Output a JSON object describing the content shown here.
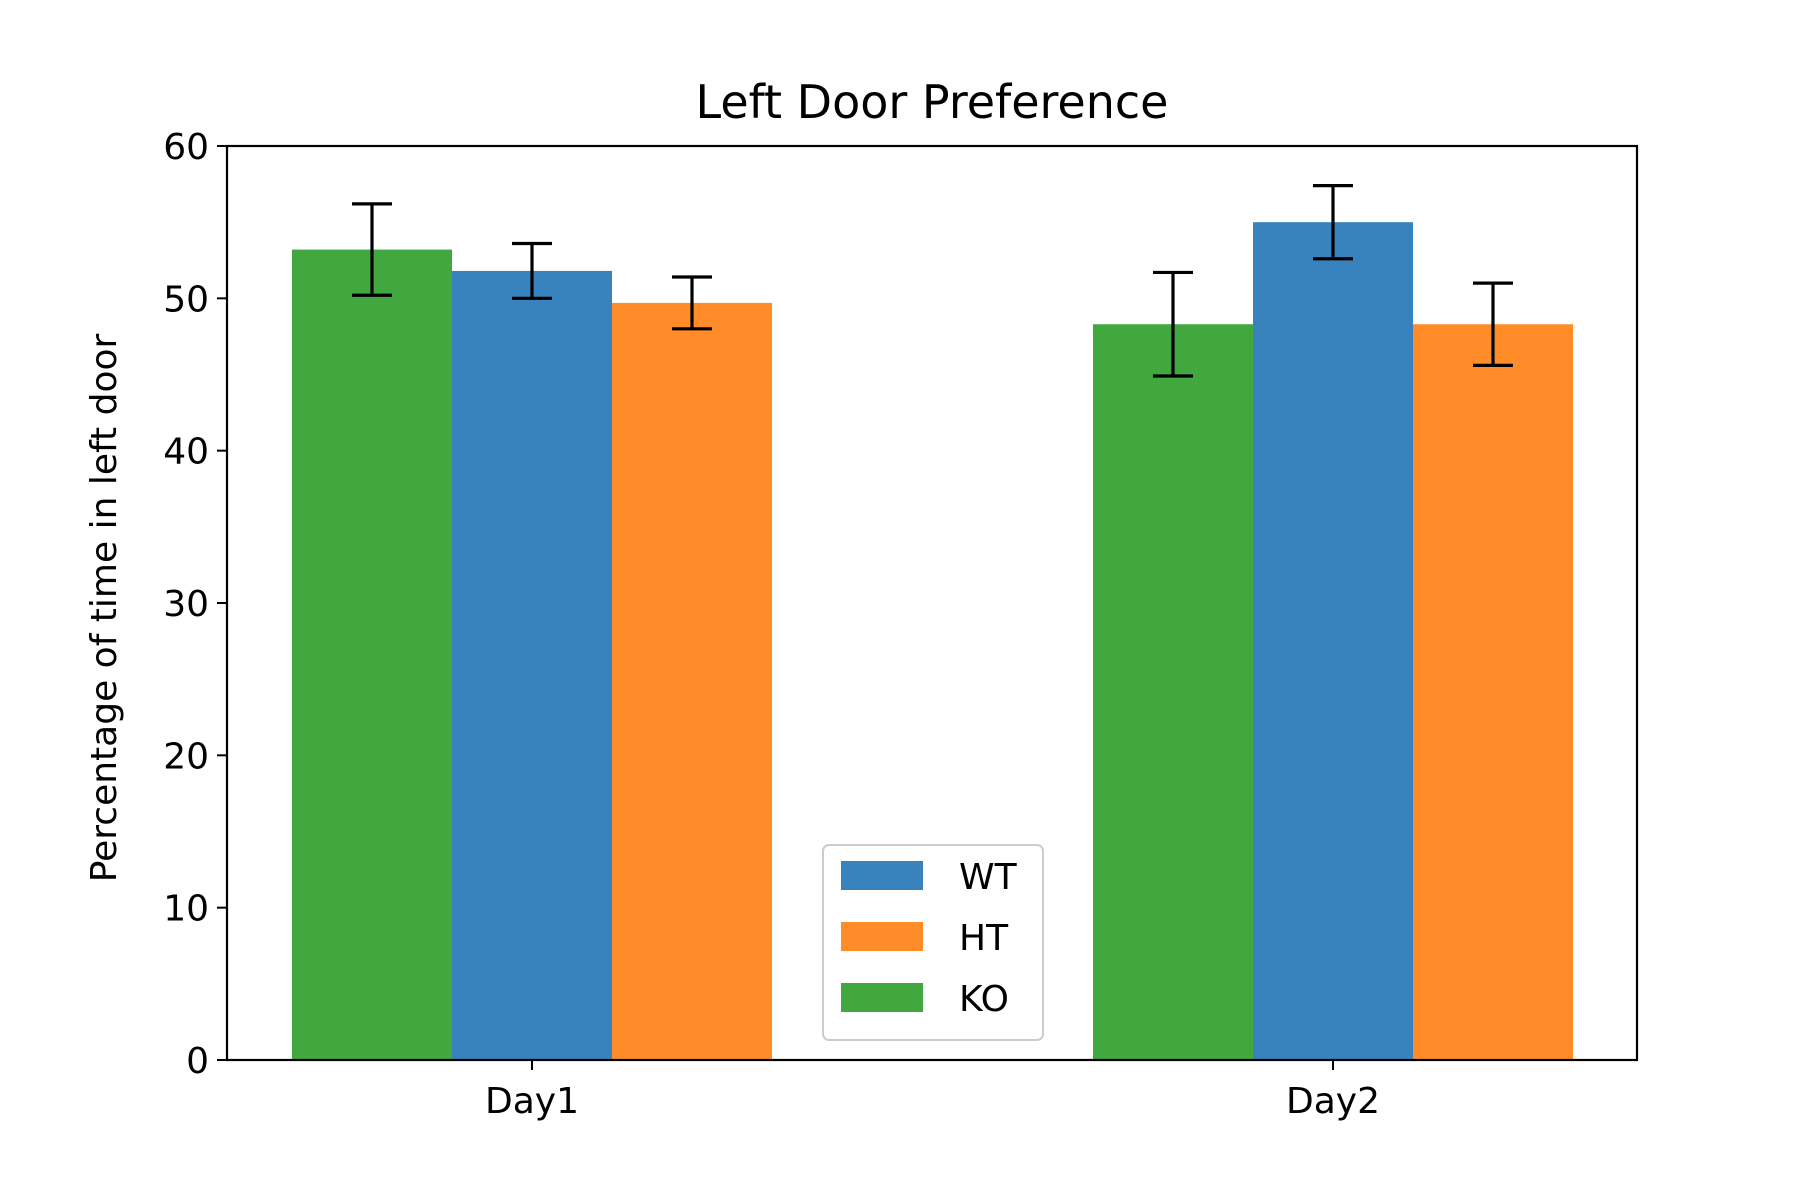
{
  "chart_data": {
    "type": "bar",
    "title": "Left Door Preference",
    "xlabel": "",
    "ylabel": "Percentage of time in left door",
    "categories": [
      "Day1",
      "Day2"
    ],
    "ylim": [
      0,
      60
    ],
    "yticks": [
      0,
      10,
      20,
      30,
      40,
      50,
      60
    ],
    "series": [
      {
        "name": "KO",
        "color": "#41a840",
        "values": [
          53.2,
          48.3
        ],
        "errors": [
          3.0,
          3.4
        ]
      },
      {
        "name": "WT",
        "color": "#3883bd",
        "values": [
          51.8,
          55.0
        ],
        "errors": [
          1.8,
          2.4
        ]
      },
      {
        "name": "HT",
        "color": "#ff8c28",
        "values": [
          49.7,
          48.3
        ],
        "errors": [
          1.7,
          2.7
        ]
      }
    ],
    "legend": {
      "placement": "lower-center",
      "entries": [
        {
          "label": "WT",
          "color": "#3883bd"
        },
        {
          "label": "HT",
          "color": "#ff8c28"
        },
        {
          "label": "KO",
          "color": "#41a840"
        }
      ]
    },
    "grid": false,
    "error_bars": true
  }
}
